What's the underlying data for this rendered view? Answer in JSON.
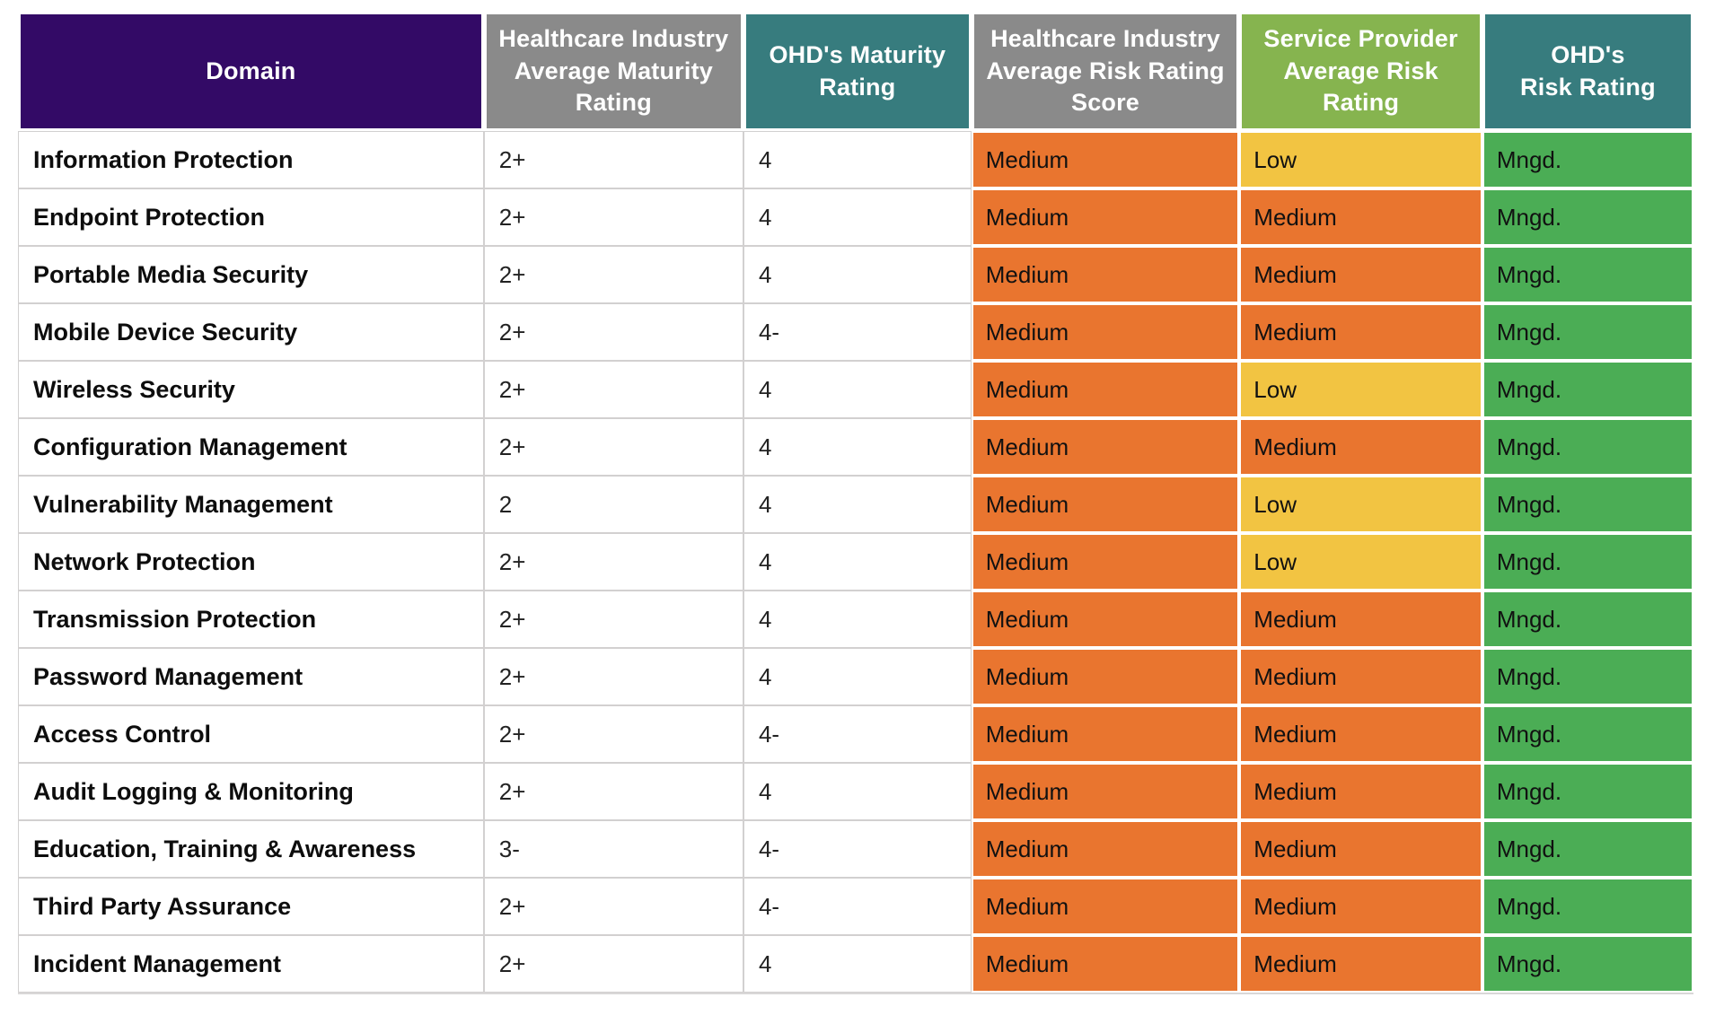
{
  "page": {
    "background": "#FFFFFF"
  },
  "chart_data": {
    "type": "table",
    "columns": [
      {
        "id": "domain",
        "label": "Domain",
        "header_bg": "#330A66"
      },
      {
        "id": "industry_maturity",
        "label": "Healthcare Industry Average Maturity Rating",
        "header_bg": "#8A8A8A"
      },
      {
        "id": "ohd_maturity",
        "label": "OHD's Maturity Rating",
        "header_bg": "#377C7E"
      },
      {
        "id": "industry_risk",
        "label": "Healthcare Industry Average Risk Rating Score",
        "header_bg": "#8A8A8A"
      },
      {
        "id": "provider_risk",
        "label": "Service Provider Average Risk Rating",
        "header_bg": "#86B44F"
      },
      {
        "id": "ohd_risk",
        "label": "OHD's\nRisk Rating",
        "header_bg": "#377C7E"
      }
    ],
    "rows": [
      {
        "domain": "Information Protection",
        "industry_maturity": "2+",
        "ohd_maturity": "4",
        "industry_risk": "Medium",
        "provider_risk": "Low",
        "ohd_risk": "Mngd."
      },
      {
        "domain": "Endpoint Protection",
        "industry_maturity": "2+",
        "ohd_maturity": "4",
        "industry_risk": "Medium",
        "provider_risk": "Medium",
        "ohd_risk": "Mngd."
      },
      {
        "domain": "Portable Media Security",
        "industry_maturity": "2+",
        "ohd_maturity": "4",
        "industry_risk": "Medium",
        "provider_risk": "Medium",
        "ohd_risk": "Mngd."
      },
      {
        "domain": "Mobile Device Security",
        "industry_maturity": "2+",
        "ohd_maturity": "4-",
        "industry_risk": "Medium",
        "provider_risk": "Medium",
        "ohd_risk": "Mngd."
      },
      {
        "domain": "Wireless Security",
        "industry_maturity": "2+",
        "ohd_maturity": "4",
        "industry_risk": "Medium",
        "provider_risk": "Low",
        "ohd_risk": "Mngd."
      },
      {
        "domain": "Configuration Management",
        "industry_maturity": "2+",
        "ohd_maturity": "4",
        "industry_risk": "Medium",
        "provider_risk": "Medium",
        "ohd_risk": "Mngd."
      },
      {
        "domain": "Vulnerability Management",
        "industry_maturity": "2",
        "ohd_maturity": "4",
        "industry_risk": "Medium",
        "provider_risk": "Low",
        "ohd_risk": "Mngd."
      },
      {
        "domain": "Network Protection",
        "industry_maturity": "2+",
        "ohd_maturity": "4",
        "industry_risk": "Medium",
        "provider_risk": "Low",
        "ohd_risk": "Mngd."
      },
      {
        "domain": "Transmission Protection",
        "industry_maturity": "2+",
        "ohd_maturity": "4",
        "industry_risk": "Medium",
        "provider_risk": "Medium",
        "ohd_risk": "Mngd."
      },
      {
        "domain": "Password Management",
        "industry_maturity": "2+",
        "ohd_maturity": "4",
        "industry_risk": "Medium",
        "provider_risk": "Medium",
        "ohd_risk": "Mngd."
      },
      {
        "domain": "Access Control",
        "industry_maturity": "2+",
        "ohd_maturity": "4-",
        "industry_risk": "Medium",
        "provider_risk": "Medium",
        "ohd_risk": "Mngd."
      },
      {
        "domain": "Audit Logging & Monitoring",
        "industry_maturity": "2+",
        "ohd_maturity": "4",
        "industry_risk": "Medium",
        "provider_risk": "Medium",
        "ohd_risk": "Mngd."
      },
      {
        "domain": "Education, Training & Awareness",
        "industry_maturity": "3-",
        "ohd_maturity": "4-",
        "industry_risk": "Medium",
        "provider_risk": "Medium",
        "ohd_risk": "Mngd."
      },
      {
        "domain": "Third Party Assurance",
        "industry_maturity": "2+",
        "ohd_maturity": "4-",
        "industry_risk": "Medium",
        "provider_risk": "Medium",
        "ohd_risk": "Mngd."
      },
      {
        "domain": "Incident Management",
        "industry_maturity": "2+",
        "ohd_maturity": "4",
        "industry_risk": "Medium",
        "provider_risk": "Medium",
        "ohd_risk": "Mngd."
      }
    ],
    "colored_columns": [
      "industry_risk",
      "provider_risk",
      "ohd_risk"
    ],
    "cell_colors": {
      "Medium": "#E9752F",
      "Low": "#F2C442",
      "Mngd.": "#4BAD55"
    }
  }
}
